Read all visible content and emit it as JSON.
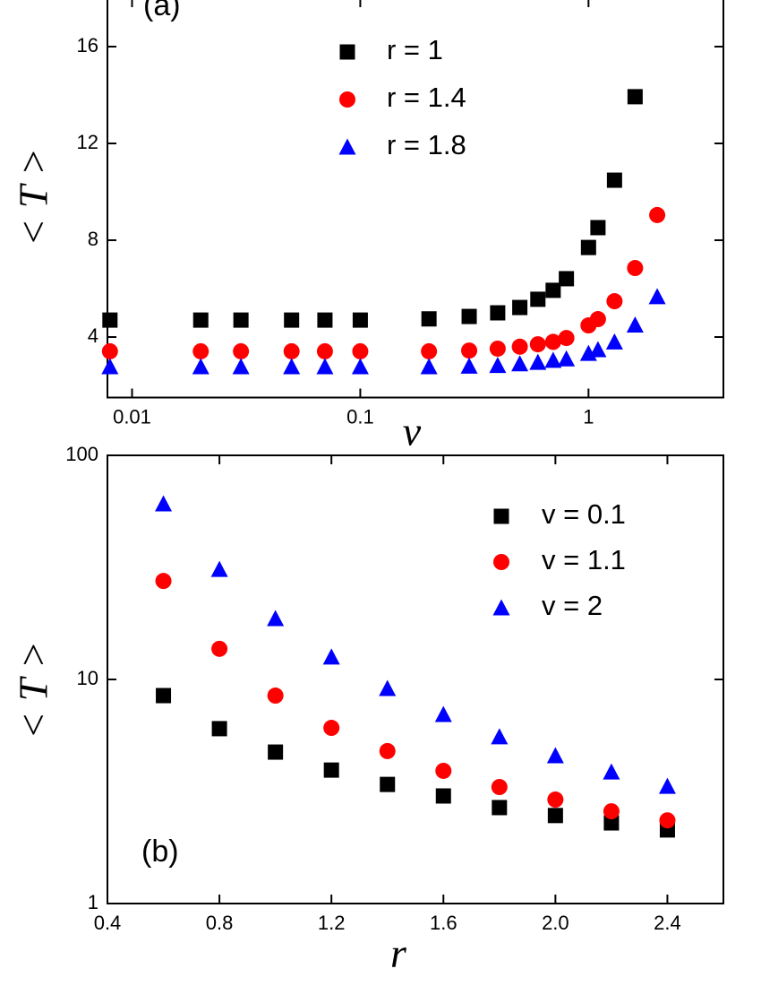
{
  "chart_data": [
    {
      "type": "scatter",
      "annotation": "(a)",
      "xlabel": "v",
      "ylabel": "< T >",
      "xlog": true,
      "xlim": [
        0.0078,
        3.9
      ],
      "xticks": [
        0.01,
        0.1,
        1
      ],
      "ylim": [
        1.5,
        18
      ],
      "yticks": [
        4,
        8,
        12,
        16
      ],
      "x": [
        0.008,
        0.02,
        0.03,
        0.05,
        0.07,
        0.1,
        0.2,
        0.3,
        0.4,
        0.5,
        0.6,
        0.7,
        0.8,
        1,
        1.1,
        1.3,
        1.6,
        2
      ],
      "series": [
        {
          "name": "r = 1",
          "color": "#000000",
          "marker": "square",
          "values": [
            4.7,
            4.7,
            4.7,
            4.7,
            4.7,
            4.7,
            4.75,
            4.85,
            5.0,
            5.22,
            5.56,
            5.93,
            6.41,
            7.7,
            8.52,
            10.48,
            13.93,
            null
          ]
        },
        {
          "name": "r = 1.4",
          "color": "#ff0000",
          "marker": "circle",
          "values": [
            3.41,
            3.41,
            3.41,
            3.41,
            3.41,
            3.41,
            3.41,
            3.44,
            3.52,
            3.6,
            3.7,
            3.8,
            3.96,
            4.48,
            4.74,
            5.48,
            6.85,
            9.04
          ]
        },
        {
          "name": "r = 1.8",
          "color": "#0000ff",
          "marker": "triangle",
          "values": [
            2.78,
            2.78,
            2.78,
            2.78,
            2.78,
            2.78,
            2.78,
            2.8,
            2.83,
            2.9,
            2.96,
            3.04,
            3.1,
            3.33,
            3.48,
            3.8,
            4.5,
            5.67
          ]
        }
      ]
    },
    {
      "type": "scatter",
      "annotation": "(b)",
      "xlabel": "r",
      "ylabel": "< T >",
      "ylog": true,
      "xlim": [
        0.4,
        2.6
      ],
      "xticks": [
        0.4,
        0.8,
        1.2,
        1.6,
        {
          "value": 2,
          "label": "2.0"
        },
        2.4
      ],
      "ylim": [
        1,
        100
      ],
      "yticks": [
        1,
        10,
        100
      ],
      "x": [
        0.6,
        0.8,
        1.0,
        1.2,
        1.4,
        1.6,
        1.8,
        2.0,
        2.2,
        2.4
      ],
      "series": [
        {
          "name": "v = 0.1",
          "color": "#000000",
          "marker": "square",
          "values": [
            8.47,
            6.03,
            4.74,
            3.94,
            3.4,
            3.02,
            2.68,
            2.47,
            2.29,
            2.13
          ]
        },
        {
          "name": "v = 1.1",
          "color": "#ff0000",
          "marker": "circle",
          "values": [
            27.5,
            13.7,
            8.47,
            6.08,
            4.79,
            3.91,
            3.31,
            2.91,
            2.58,
            2.35
          ]
        },
        {
          "name": "v = 2",
          "color": "#0000ff",
          "marker": "triangle",
          "values": [
            60.8,
            31.0,
            18.7,
            12.6,
            9.12,
            6.98,
            5.55,
            4.57,
            3.87,
            3.34
          ]
        }
      ]
    }
  ]
}
